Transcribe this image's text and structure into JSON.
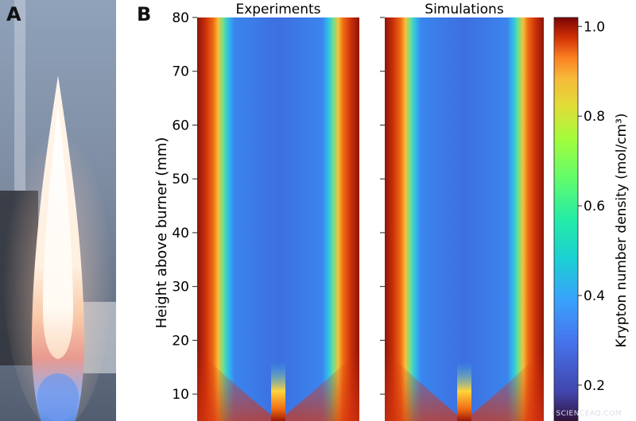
{
  "panel_a": {
    "letter": "A"
  },
  "panel_b": {
    "letter": "B"
  },
  "chart_data": {
    "type": "heatmap",
    "panels": [
      "Experiments",
      "Simulations"
    ],
    "ylabel": "Height above burner (mm)",
    "ylim": [
      5,
      80
    ],
    "yticks": [
      10,
      20,
      30,
      40,
      50,
      60,
      70,
      80
    ],
    "colorbar": {
      "label": "Krypton number density (mol/cm³)",
      "ticks": [
        0.2,
        0.4,
        0.6,
        0.8,
        1.0
      ],
      "tick_labels": [
        "0.2",
        "0.4",
        "0.6",
        "0.8",
        "1.0"
      ],
      "range": [
        0.12,
        1.02
      ],
      "colormap": "turbo"
    }
  },
  "watermark": "SCIENCEAQ.COM"
}
